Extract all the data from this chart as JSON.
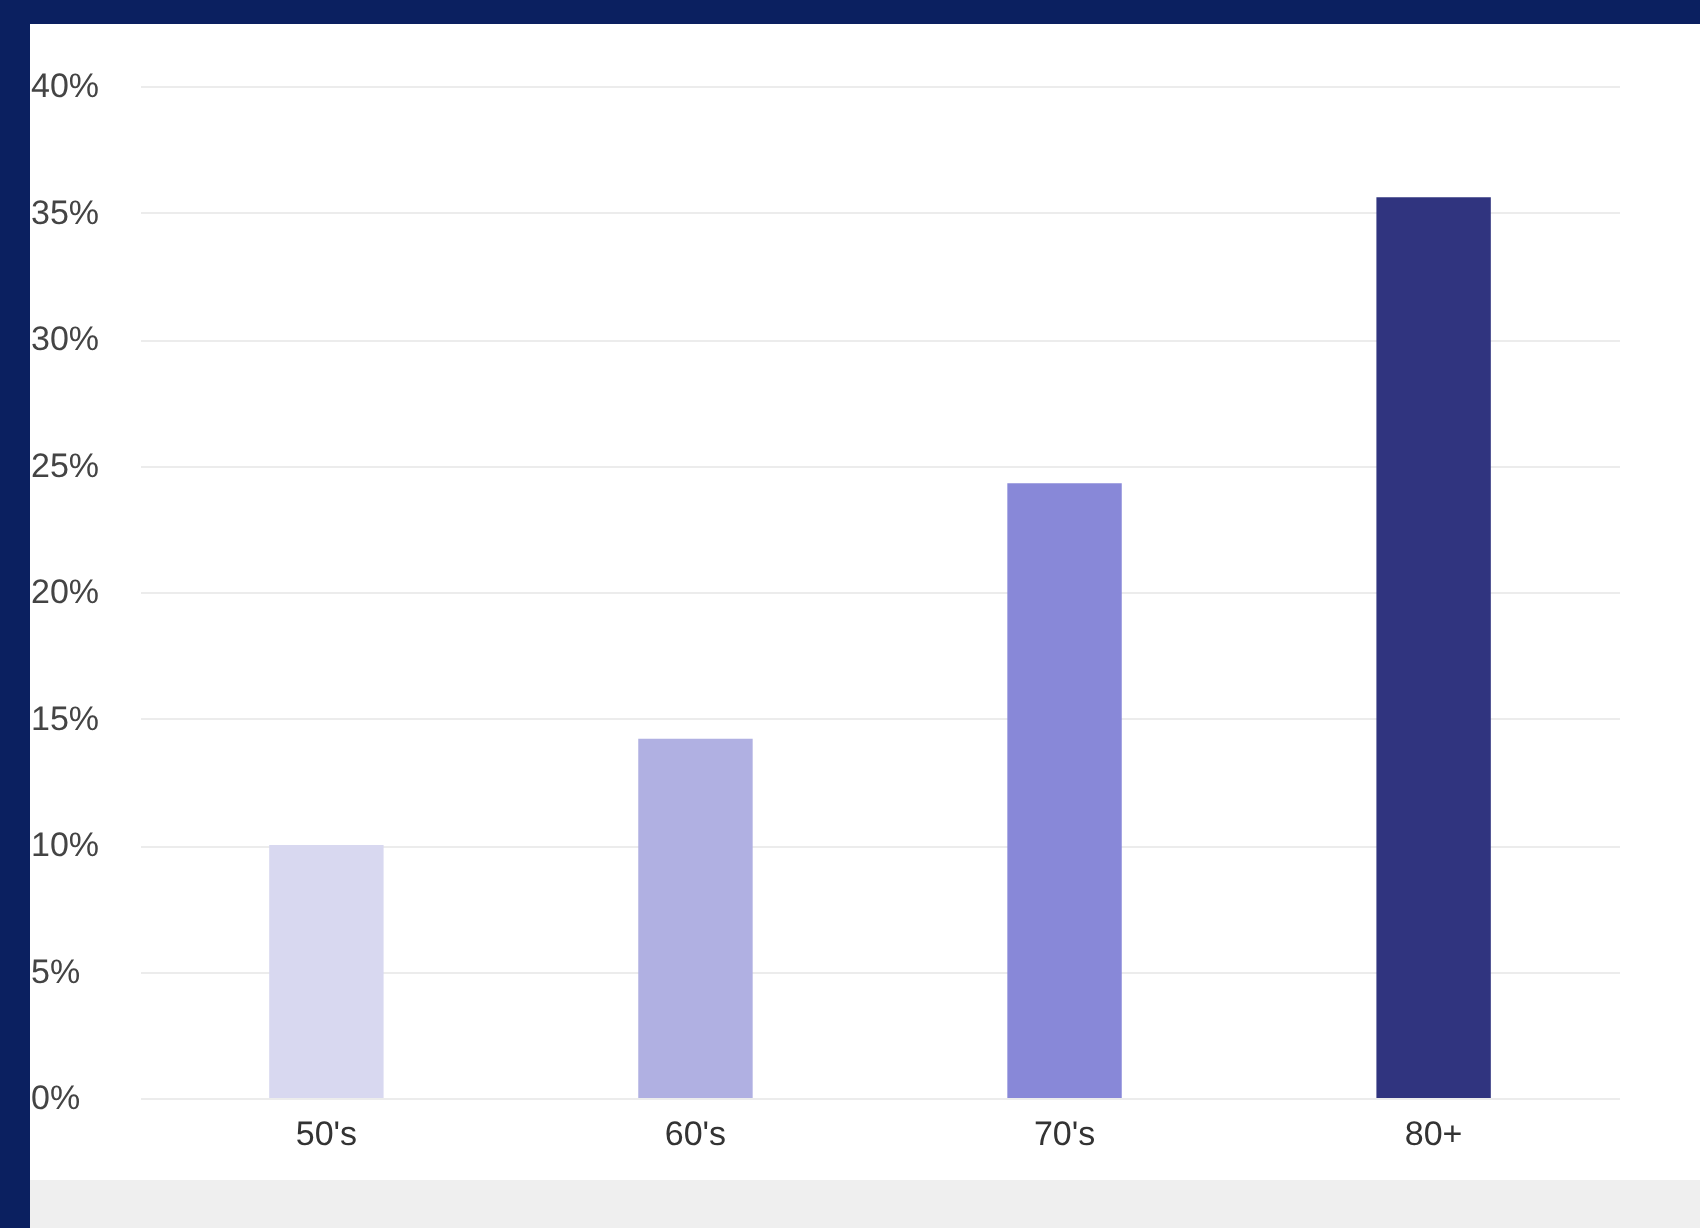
{
  "chart_data": {
    "type": "bar",
    "categories": [
      "50's",
      "60's",
      "70's",
      "80+"
    ],
    "values": [
      10,
      14.2,
      24.3,
      35.6
    ],
    "colors": [
      "#d8d8f0",
      "#b0b0e2",
      "#8888d8",
      "#30347f"
    ],
    "ylim": [
      0,
      40
    ],
    "yticks": [
      {
        "value": 0,
        "label": "0%"
      },
      {
        "value": 5,
        "label": "5%"
      },
      {
        "value": 10,
        "label": "10%"
      },
      {
        "value": 15,
        "label": "15%"
      },
      {
        "value": 20,
        "label": "20%"
      },
      {
        "value": 25,
        "label": "25%"
      },
      {
        "value": 30,
        "label": "30%"
      },
      {
        "value": 35,
        "label": "35%"
      },
      {
        "value": 40,
        "label": "40%"
      }
    ],
    "grid": "y"
  }
}
